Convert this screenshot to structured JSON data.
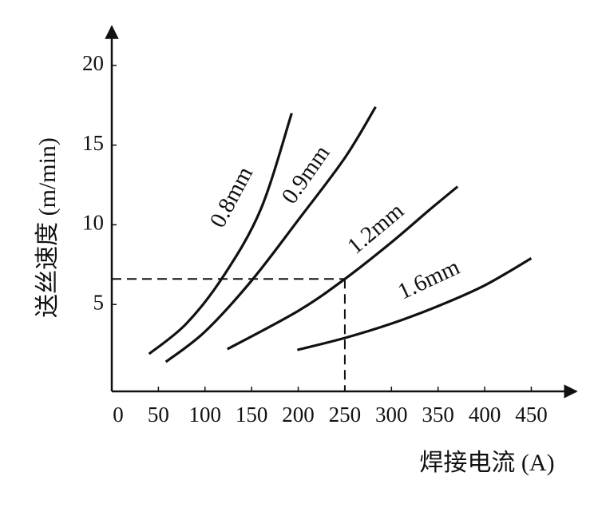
{
  "chart_data": {
    "type": "line",
    "x_label": "焊接电流 (A)",
    "y_label": "送丝速度 (m/min)",
    "xlim": [
      0,
      495
    ],
    "ylim": [
      0,
      22.3
    ],
    "xticks": [
      0,
      50,
      100,
      150,
      200,
      250,
      300,
      350,
      400,
      450
    ],
    "yticks": [
      5,
      10,
      15,
      20
    ],
    "reference": {
      "x": 250,
      "y": 6.6
    },
    "series": [
      {
        "name": "0.8mm",
        "color": "#111111",
        "x": [
          40,
          80,
          120,
          160,
          193
        ],
        "values": [
          1.9,
          3.8,
          6.8,
          11,
          17
        ]
      },
      {
        "name": "0.9mm",
        "color": "#111111",
        "x": [
          58,
          100,
          150,
          200,
          250,
          283
        ],
        "values": [
          1.4,
          3.3,
          6.5,
          10.3,
          14.2,
          17.4
        ]
      },
      {
        "name": "1.2mm",
        "color": "#111111",
        "x": [
          124,
          200,
          250,
          300,
          340,
          371
        ],
        "values": [
          2.2,
          4.6,
          6.6,
          8.9,
          10.9,
          12.4
        ]
      },
      {
        "name": "1.6mm",
        "color": "#111111",
        "x": [
          199,
          250,
          300,
          350,
          400,
          450
        ],
        "values": [
          2.15,
          2.9,
          3.8,
          4.9,
          6.2,
          7.9
        ]
      }
    ]
  }
}
